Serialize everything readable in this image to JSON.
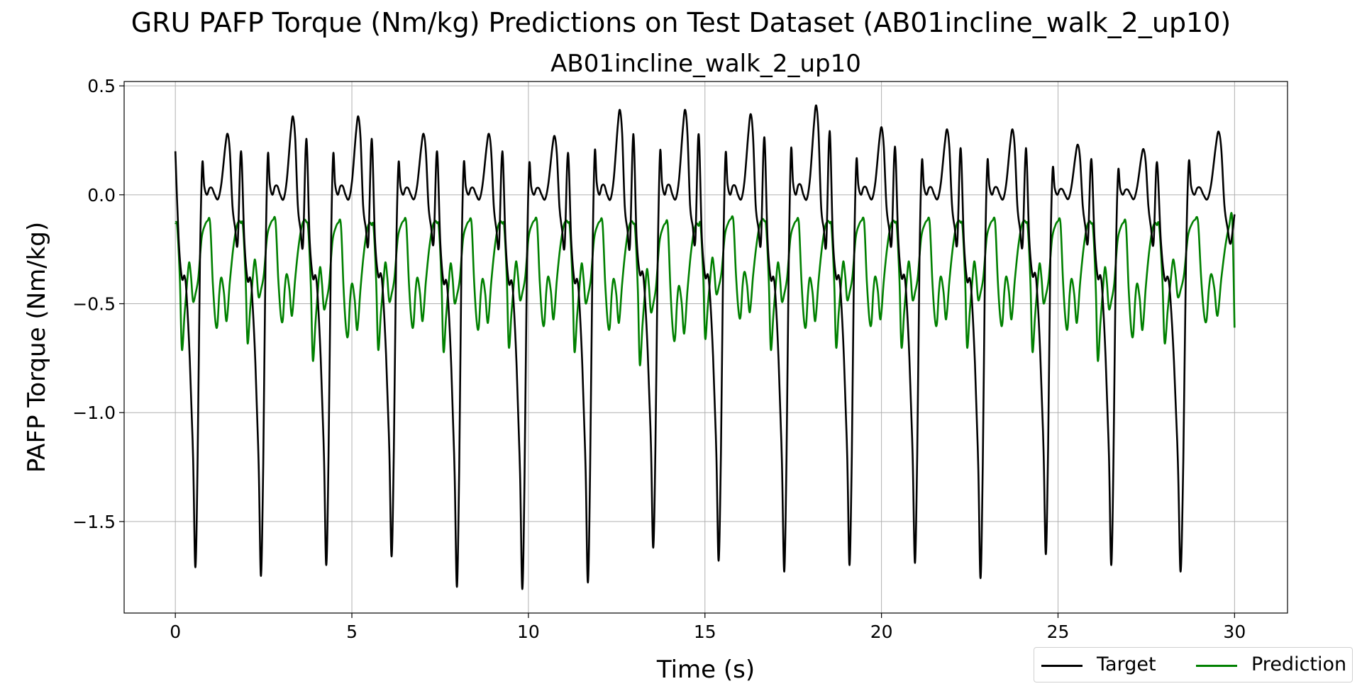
{
  "chart_data": {
    "type": "line",
    "title": "GRU PAFP Torque (Nm/kg) Predictions on Test Dataset (AB01incline_walk_2_up10)",
    "subtitle": "AB01incline_walk_2_up10",
    "xlabel": "Time (s)",
    "ylabel": "PAFP Torque (Nm/kg)",
    "xlim": [
      -1.45,
      31.5
    ],
    "ylim": [
      -1.92,
      0.52
    ],
    "xticks": [
      0,
      5,
      10,
      15,
      20,
      25,
      30
    ],
    "xtick_labels": [
      "0",
      "5",
      "10",
      "15",
      "20",
      "25",
      "30"
    ],
    "yticks": [
      0.5,
      0.0,
      -0.5,
      -1.0,
      -1.5
    ],
    "ytick_labels": [
      "0.5",
      "0.0",
      "−0.5",
      "−1.0",
      "−1.5"
    ],
    "grid": true,
    "legend": {
      "placement": "bottom-right",
      "columns": 2
    },
    "series": [
      {
        "name": "Target",
        "color": "#000000",
        "cycles": [
          {
            "start": 0.0,
            "min": -1.71,
            "peak": 0.28
          },
          {
            "start": 1.86,
            "min": -1.75,
            "peak": 0.36
          },
          {
            "start": 3.71,
            "min": -1.7,
            "peak": 0.36
          },
          {
            "start": 5.56,
            "min": -1.66,
            "peak": 0.28
          },
          {
            "start": 7.41,
            "min": -1.8,
            "peak": 0.28
          },
          {
            "start": 9.26,
            "min": -1.81,
            "peak": 0.27
          },
          {
            "start": 11.12,
            "min": -1.78,
            "peak": 0.39
          },
          {
            "start": 12.97,
            "min": -1.62,
            "peak": 0.39
          },
          {
            "start": 14.82,
            "min": -1.68,
            "peak": 0.37
          },
          {
            "start": 16.68,
            "min": -1.73,
            "peak": 0.41
          },
          {
            "start": 18.53,
            "min": -1.7,
            "peak": 0.31
          },
          {
            "start": 20.38,
            "min": -1.69,
            "peak": 0.3
          },
          {
            "start": 22.24,
            "min": -1.76,
            "peak": 0.3
          },
          {
            "start": 24.09,
            "min": -1.65,
            "peak": 0.23
          },
          {
            "start": 25.94,
            "min": -1.7,
            "peak": 0.21
          },
          {
            "start": 27.8,
            "min": -1.73,
            "peak": 0.29
          }
        ],
        "end": {
          "x": 30.0,
          "y": -0.09
        },
        "shape": [
          [
            0.0,
            0.2
          ],
          [
            0.05,
            -0.2
          ],
          [
            0.1,
            -0.38
          ],
          [
            0.14,
            -0.37
          ],
          [
            0.17,
            -0.45
          ],
          [
            0.22,
            -0.75
          ],
          [
            0.27,
            -1.2
          ],
          [
            0.305,
            -1.7
          ],
          [
            0.34,
            -1.2
          ],
          [
            0.375,
            -0.3
          ],
          [
            0.41,
            0.14
          ],
          [
            0.44,
            0.04
          ],
          [
            0.48,
            0.0
          ],
          [
            0.52,
            0.03
          ],
          [
            0.56,
            0.03
          ],
          [
            0.6,
            0.0
          ],
          [
            0.65,
            -0.02
          ],
          [
            0.7,
            0.05
          ],
          [
            0.76,
            0.22
          ],
          [
            0.795,
            0.28
          ],
          [
            0.83,
            0.2
          ],
          [
            0.87,
            -0.05
          ],
          [
            0.91,
            -0.15
          ],
          [
            0.95,
            -0.22
          ],
          [
            1.0,
            0.2
          ]
        ]
      },
      {
        "name": "Prediction",
        "color": "#008000",
        "cycles": [
          {
            "start": 0.0,
            "min": -0.71
          },
          {
            "start": 1.86,
            "min": -0.68
          },
          {
            "start": 3.71,
            "min": -0.76
          },
          {
            "start": 5.56,
            "min": -0.71
          },
          {
            "start": 7.41,
            "min": -0.72
          },
          {
            "start": 9.26,
            "min": -0.7
          },
          {
            "start": 11.12,
            "min": -0.72
          },
          {
            "start": 12.97,
            "min": -0.78
          },
          {
            "start": 14.82,
            "min": -0.66
          },
          {
            "start": 16.68,
            "min": -0.71
          },
          {
            "start": 18.53,
            "min": -0.7
          },
          {
            "start": 20.38,
            "min": -0.7
          },
          {
            "start": 22.24,
            "min": -0.7
          },
          {
            "start": 24.09,
            "min": -0.72
          },
          {
            "start": 25.94,
            "min": -0.76
          },
          {
            "start": 27.8,
            "min": -0.68
          }
        ],
        "end": {
          "x": 30.0,
          "y": -0.61
        },
        "shape": [
          [
            0.0,
            -0.13
          ],
          [
            0.03,
            -0.15
          ],
          [
            0.07,
            -0.4
          ],
          [
            0.1,
            -0.71
          ],
          [
            0.14,
            -0.55
          ],
          [
            0.18,
            -0.4
          ],
          [
            0.21,
            -0.31
          ],
          [
            0.24,
            -0.38
          ],
          [
            0.27,
            -0.49
          ],
          [
            0.31,
            -0.45
          ],
          [
            0.35,
            -0.38
          ],
          [
            0.4,
            -0.2
          ],
          [
            0.45,
            -0.14
          ],
          [
            0.49,
            -0.12
          ],
          [
            0.53,
            -0.13
          ],
          [
            0.57,
            -0.4
          ],
          [
            0.61,
            -0.58
          ],
          [
            0.64,
            -0.6
          ],
          [
            0.67,
            -0.45
          ],
          [
            0.7,
            -0.38
          ],
          [
            0.74,
            -0.45
          ],
          [
            0.78,
            -0.58
          ],
          [
            0.83,
            -0.4
          ],
          [
            0.88,
            -0.25
          ],
          [
            0.93,
            -0.15
          ],
          [
            0.97,
            -0.12
          ],
          [
            1.0,
            -0.13
          ]
        ]
      }
    ]
  }
}
